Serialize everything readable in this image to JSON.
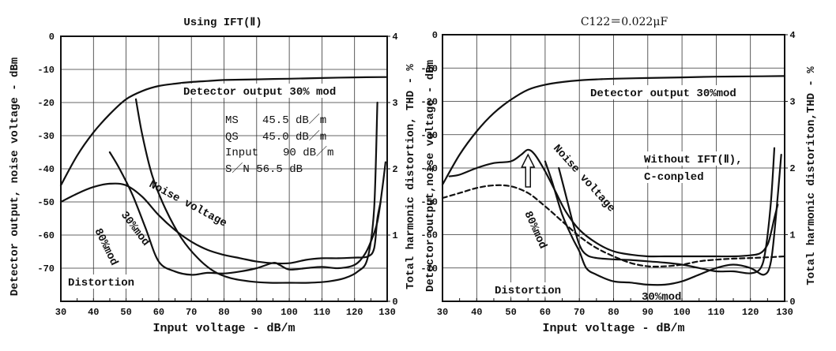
{
  "chart_data": [
    {
      "type": "line",
      "title": "Using IFT(Ⅱ)",
      "xlabel": "Input voltage - dB/m",
      "ylabel_left": "Detector output, noise voltage - dBm",
      "ylabel_right": "Total harmonic distortion, THD - %",
      "xlim": [
        30,
        130
      ],
      "ylim_left": [
        -80,
        0
      ],
      "ylim_right": [
        0,
        4
      ],
      "x_ticks": [
        30,
        40,
        50,
        60,
        70,
        80,
        90,
        100,
        110,
        120,
        130
      ],
      "y_ticks_left": [
        "0",
        "-10",
        "-20",
        "-30",
        "-40",
        "-50",
        "-60",
        "-70"
      ],
      "y_ticks_right": [
        "4",
        "3",
        "2",
        "1",
        "0"
      ],
      "grid": true,
      "info_box": [
        "MS",
        "45.5 dB／m",
        "QS",
        "45.0 dB／m",
        "Input",
        "90 dB／m",
        "S／N 56.5 dB"
      ],
      "labels": {
        "detector": "Detector output 30% mod",
        "noise": "Noise voltage",
        "distortion": "Distortion",
        "mod30": "30%mod",
        "mod80": "80%mod"
      },
      "series": [
        {
          "name": "Detector output 30% mod",
          "axis": "left",
          "style": "solid",
          "x": [
            30,
            35,
            40,
            45,
            50,
            55,
            60,
            65,
            70,
            75,
            80,
            90,
            100,
            110,
            120,
            130
          ],
          "y": [
            -45,
            -36,
            -29,
            -23.5,
            -19,
            -16.5,
            -15,
            -14.3,
            -13.8,
            -13.5,
            -13.2,
            -13,
            -12.8,
            -12.6,
            -12.4,
            -12.3
          ]
        },
        {
          "name": "Noise voltage",
          "axis": "left",
          "style": "solid",
          "x": [
            30,
            35,
            40,
            45,
            50,
            55,
            60,
            65,
            70,
            75,
            80,
            85,
            90,
            95,
            100,
            105,
            110,
            115,
            120,
            124,
            126,
            127,
            128
          ],
          "y": [
            -50,
            -47.5,
            -45.5,
            -44.5,
            -45,
            -48.5,
            -54,
            -58.5,
            -62,
            -64.5,
            -66,
            -67,
            -68,
            -68.5,
            -68.5,
            -67.5,
            -67,
            -67,
            -66.8,
            -66.5,
            -64,
            -55,
            -50
          ]
        },
        {
          "name": "30%mod",
          "axis": "right",
          "style": "solid",
          "x": [
            53,
            55,
            58,
            62,
            67,
            72,
            77,
            82,
            88,
            94,
            100,
            106,
            112,
            117,
            121,
            124,
            126,
            127
          ],
          "y": [
            3.05,
            2.5,
            1.9,
            1.4,
            0.95,
            0.65,
            0.45,
            0.35,
            0.3,
            0.28,
            0.28,
            0.28,
            0.3,
            0.35,
            0.45,
            0.65,
            1.4,
            3.0
          ]
        },
        {
          "name": "80%mod",
          "axis": "right",
          "style": "solid",
          "x": [
            45,
            48,
            52,
            56,
            60,
            65,
            70,
            75,
            80,
            85,
            90,
            95,
            97,
            100,
            105,
            110,
            115,
            120,
            123,
            125,
            127,
            128.5,
            129.5
          ],
          "y": [
            2.25,
            2.0,
            1.6,
            1.1,
            0.6,
            0.45,
            0.4,
            0.43,
            0.42,
            0.45,
            0.5,
            0.58,
            0.55,
            0.48,
            0.5,
            0.52,
            0.5,
            0.55,
            0.7,
            0.9,
            1.2,
            1.7,
            2.1
          ]
        }
      ]
    },
    {
      "type": "line",
      "title": "C122＝0.022μF",
      "xlabel": "Input voltage - dB/m",
      "ylabel_left": "Detector output,noise voltage - dBm",
      "ylabel_right": "Total harmonic distoriton,THD - %",
      "xlim": [
        30,
        130
      ],
      "ylim_left": [
        -80,
        0
      ],
      "ylim_right": [
        0,
        4
      ],
      "x_ticks": [
        30,
        40,
        50,
        60,
        70,
        80,
        90,
        100,
        110,
        120,
        130
      ],
      "y_ticks_left": [
        "0",
        "-10",
        "-20",
        "-30",
        "-40",
        "-50",
        "-60",
        "-70"
      ],
      "y_ticks_right": [
        "4",
        "3",
        "2",
        "1",
        "0"
      ],
      "grid": true,
      "annotation": "Without IFT(Ⅱ), C-conpled",
      "labels": {
        "detector": "Detector output 30%mod",
        "noise": "Noise voltage",
        "distortion": "Distortion",
        "mod30": "30%mod",
        "mod80": "80%mod",
        "without_line1": "Without IFT(Ⅱ),",
        "without_line2": "C-conpled"
      },
      "series": [
        {
          "name": "Detector output 30%mod",
          "axis": "left",
          "style": "solid",
          "x": [
            30,
            35,
            40,
            45,
            50,
            55,
            60,
            65,
            70,
            75,
            80,
            90,
            100,
            110,
            120,
            130
          ],
          "y": [
            -45,
            -36,
            -29,
            -23.5,
            -19.5,
            -16.5,
            -15,
            -14.2,
            -13.7,
            -13.4,
            -13.2,
            -13,
            -12.8,
            -12.6,
            -12.5,
            -12.4
          ]
        },
        {
          "name": "Noise voltage",
          "axis": "left",
          "style": "solid",
          "x": [
            32,
            35,
            40,
            45,
            50,
            53,
            55,
            57,
            60,
            63,
            66,
            70,
            75,
            80,
            85,
            90,
            95,
            100,
            105,
            110,
            115,
            120,
            123,
            125,
            126,
            127,
            128
          ],
          "y": [
            -42.5,
            -42,
            -40,
            -38.5,
            -38,
            -36,
            -34.5,
            -36,
            -41,
            -47,
            -53,
            -58.5,
            -62.5,
            -65,
            -66,
            -66.5,
            -66.5,
            -66.5,
            -66.5,
            -66.5,
            -66.5,
            -66.2,
            -65.5,
            -63,
            -59.5,
            -55,
            -51
          ]
        },
        {
          "name": "Noise voltage (without IFT(Ⅱ), C-conpled)",
          "axis": "left",
          "style": "dashed",
          "x": [
            30,
            35,
            40,
            45,
            50,
            55,
            60,
            65,
            70,
            75,
            80,
            85,
            90,
            95,
            100,
            105,
            110,
            115,
            120,
            125,
            130
          ],
          "y": [
            -49,
            -47.5,
            -46,
            -45.2,
            -45.5,
            -47.5,
            -51.5,
            -56,
            -60.5,
            -64,
            -66.5,
            -68.5,
            -69.5,
            -69.5,
            -69,
            -68,
            -67.5,
            -67.2,
            -67,
            -66.8,
            -66.5
          ]
        },
        {
          "name": "30%mod",
          "axis": "right",
          "style": "solid",
          "x": [
            60,
            62,
            65,
            68,
            70,
            72,
            75,
            80,
            85,
            90,
            95,
            100,
            105,
            110,
            115,
            120,
            124,
            126,
            127.5,
            129
          ],
          "y": [
            2.1,
            1.8,
            1.3,
            0.95,
            0.75,
            0.5,
            0.4,
            0.3,
            0.28,
            0.25,
            0.25,
            0.3,
            0.4,
            0.5,
            0.55,
            0.5,
            0.4,
            0.6,
            1.3,
            2.2
          ]
        },
        {
          "name": "80%mod",
          "axis": "right",
          "style": "solid",
          "x": [
            64,
            66,
            68,
            70,
            72,
            75,
            80,
            85,
            90,
            95,
            100,
            105,
            110,
            115,
            120,
            123,
            124.5,
            126,
            127
          ],
          "y": [
            2.0,
            1.6,
            1.2,
            0.85,
            0.7,
            0.65,
            0.63,
            0.62,
            0.6,
            0.58,
            0.55,
            0.5,
            0.45,
            0.45,
            0.42,
            0.5,
            0.8,
            1.5,
            2.3
          ]
        }
      ]
    }
  ]
}
